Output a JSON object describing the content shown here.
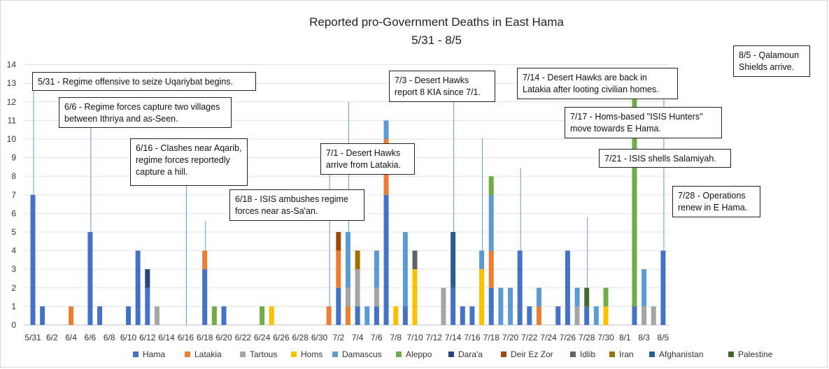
{
  "chart_data": {
    "type": "bar",
    "stacked": true,
    "title": "Reported pro-Government  Deaths in East Hama",
    "subtitle": "5/31 - 8/5",
    "ylim": [
      0,
      14
    ],
    "yticks": [
      0,
      1,
      2,
      3,
      4,
      5,
      6,
      7,
      8,
      9,
      10,
      11,
      12,
      13,
      14
    ],
    "grid": true,
    "legend": "bottom",
    "categories": [
      "5/31",
      "6/1",
      "6/2",
      "6/3",
      "6/4",
      "6/5",
      "6/6",
      "6/7",
      "6/8",
      "6/9",
      "6/10",
      "6/11",
      "6/12",
      "6/13",
      "6/14",
      "6/15",
      "6/16",
      "6/17",
      "6/18",
      "6/19",
      "6/20",
      "6/21",
      "6/22",
      "6/23",
      "6/24",
      "6/25",
      "6/26",
      "6/27",
      "6/28",
      "6/29",
      "6/30",
      "7/1",
      "7/2",
      "7/3",
      "7/4",
      "7/5",
      "7/6",
      "7/7",
      "7/8",
      "7/9",
      "7/10",
      "7/11",
      "7/12",
      "7/13",
      "7/14",
      "7/15",
      "7/16",
      "7/17",
      "7/18",
      "7/19",
      "7/20",
      "7/21",
      "7/22",
      "7/23",
      "7/24",
      "7/25",
      "7/26",
      "7/27",
      "7/28",
      "7/29",
      "7/30",
      "7/31",
      "8/1",
      "8/2",
      "8/3",
      "8/4",
      "8/5"
    ],
    "tick_labels": [
      "5/31",
      "6/2",
      "6/4",
      "6/6",
      "6/8",
      "6/10",
      "6/12",
      "6/14",
      "6/16",
      "6/18",
      "6/20",
      "6/22",
      "6/24",
      "6/26",
      "6/28",
      "6/30",
      "7/2",
      "7/4",
      "7/6",
      "7/8",
      "7/10",
      "7/12",
      "7/14",
      "7/16",
      "7/18",
      "7/20",
      "7/22",
      "7/24",
      "7/26",
      "7/28",
      "7/30",
      "8/1",
      "8/3",
      "8/5"
    ],
    "series": [
      {
        "name": "Hama",
        "color": "#4472c4",
        "values": [
          7,
          1,
          0,
          0,
          0,
          0,
          5,
          1,
          0,
          0,
          1,
          4,
          2,
          0,
          0,
          0,
          0,
          0,
          3,
          0,
          1,
          0,
          0,
          0,
          0,
          0,
          0,
          0,
          0,
          0,
          0,
          0,
          2,
          0,
          1,
          0,
          1,
          7,
          0,
          1,
          0,
          0,
          0,
          0,
          2,
          1,
          1,
          0,
          2,
          0,
          0,
          4,
          1,
          0,
          0,
          1,
          4,
          0,
          1,
          0,
          0,
          0,
          0,
          1,
          0,
          0,
          4
        ]
      },
      {
        "name": "Latakia",
        "color": "#ed7d31",
        "values": [
          0,
          0,
          0,
          0,
          1,
          0,
          0,
          0,
          0,
          0,
          0,
          0,
          0,
          0,
          0,
          0,
          0,
          0,
          1,
          0,
          0,
          0,
          0,
          0,
          0,
          0,
          0,
          0,
          0,
          0,
          0,
          1,
          2,
          1,
          0,
          0,
          0,
          3,
          0,
          0,
          0,
          0,
          0,
          0,
          0,
          0,
          0,
          0,
          2,
          0,
          0,
          0,
          0,
          1,
          0,
          0,
          0,
          0,
          0,
          0,
          0,
          0,
          0,
          0,
          0,
          0,
          0
        ]
      },
      {
        "name": "Tartous",
        "color": "#a5a5a5",
        "values": [
          0,
          0,
          0,
          0,
          0,
          0,
          0,
          0,
          0,
          0,
          0,
          0,
          0,
          1,
          0,
          0,
          0,
          0,
          0,
          0,
          0,
          0,
          0,
          0,
          0,
          0,
          0,
          0,
          0,
          0,
          0,
          0,
          0,
          1,
          2,
          0,
          1,
          0,
          0,
          0,
          0,
          0,
          0,
          2,
          0,
          0,
          0,
          0,
          0,
          0,
          0,
          0,
          0,
          0,
          0,
          0,
          0,
          1,
          0,
          0,
          0,
          0,
          0,
          0,
          1,
          1,
          0
        ]
      },
      {
        "name": "Homs",
        "color": "#ffc000",
        "values": [
          0,
          0,
          0,
          0,
          0,
          0,
          0,
          0,
          0,
          0,
          0,
          0,
          0,
          0,
          0,
          0,
          0,
          0,
          0,
          0,
          0,
          0,
          0,
          0,
          0,
          1,
          0,
          0,
          0,
          0,
          0,
          0,
          0,
          0,
          0,
          0,
          0,
          0,
          1,
          0,
          3,
          0,
          0,
          0,
          0,
          0,
          0,
          3,
          0,
          0,
          0,
          0,
          0,
          0,
          0,
          0,
          0,
          0,
          0,
          0,
          1,
          0,
          0,
          0,
          0,
          0,
          0
        ]
      },
      {
        "name": "Damascus",
        "color": "#5b9bd5",
        "values": [
          0,
          0,
          0,
          0,
          0,
          0,
          0,
          0,
          0,
          0,
          0,
          0,
          0,
          0,
          0,
          0,
          0,
          0,
          0,
          0,
          0,
          0,
          0,
          0,
          0,
          0,
          0,
          0,
          0,
          0,
          0,
          0,
          0,
          3,
          0,
          1,
          2,
          1,
          0,
          4,
          0,
          0,
          0,
          0,
          0,
          0,
          0,
          1,
          3,
          2,
          2,
          0,
          0,
          1,
          0,
          0,
          0,
          1,
          0,
          1,
          0,
          0,
          0,
          0,
          2,
          0,
          0
        ]
      },
      {
        "name": "Aleppo",
        "color": "#70ad47",
        "values": [
          0,
          0,
          0,
          0,
          0,
          0,
          0,
          0,
          0,
          0,
          0,
          0,
          0,
          0,
          0,
          0,
          0,
          0,
          0,
          1,
          0,
          0,
          0,
          0,
          1,
          0,
          0,
          0,
          0,
          0,
          0,
          0,
          0,
          0,
          0,
          0,
          0,
          0,
          0,
          0,
          0,
          0,
          0,
          0,
          0,
          0,
          0,
          0,
          1,
          0,
          0,
          0,
          0,
          0,
          0,
          0,
          0,
          0,
          0,
          0,
          1,
          0,
          0,
          12,
          0,
          0,
          0
        ]
      },
      {
        "name": "Dara'a",
        "color": "#264478",
        "values": [
          0,
          0,
          0,
          0,
          0,
          0,
          0,
          0,
          0,
          0,
          0,
          0,
          1,
          0,
          0,
          0,
          0,
          0,
          0,
          0,
          0,
          0,
          0,
          0,
          0,
          0,
          0,
          0,
          0,
          0,
          0,
          0,
          0,
          0,
          0,
          0,
          0,
          0,
          0,
          0,
          0,
          0,
          0,
          0,
          0,
          0,
          0,
          0,
          0,
          0,
          0,
          0,
          0,
          0,
          0,
          0,
          0,
          0,
          0,
          0,
          0,
          0,
          0,
          0,
          0,
          0,
          0
        ]
      },
      {
        "name": "Deir Ez Zor",
        "color": "#9e480e",
        "values": [
          0,
          0,
          0,
          0,
          0,
          0,
          0,
          0,
          0,
          0,
          0,
          0,
          0,
          0,
          0,
          0,
          0,
          0,
          0,
          0,
          0,
          0,
          0,
          0,
          0,
          0,
          0,
          0,
          0,
          0,
          0,
          0,
          1,
          0,
          0,
          0,
          0,
          0,
          0,
          0,
          0,
          0,
          0,
          0,
          0,
          0,
          0,
          0,
          0,
          0,
          0,
          0,
          0,
          0,
          0,
          0,
          0,
          0,
          0,
          0,
          0,
          0,
          0,
          0,
          0,
          0,
          0
        ]
      },
      {
        "name": "Idlib",
        "color": "#636363",
        "values": [
          0,
          0,
          0,
          0,
          0,
          0,
          0,
          0,
          0,
          0,
          0,
          0,
          0,
          0,
          0,
          0,
          0,
          0,
          0,
          0,
          0,
          0,
          0,
          0,
          0,
          0,
          0,
          0,
          0,
          0,
          0,
          0,
          0,
          0,
          0,
          0,
          0,
          0,
          0,
          0,
          1,
          0,
          0,
          0,
          0,
          0,
          0,
          0,
          0,
          0,
          0,
          0,
          0,
          0,
          0,
          0,
          0,
          0,
          0,
          0,
          0,
          0,
          0,
          0,
          0,
          0,
          0
        ]
      },
      {
        "name": "Iran",
        "color": "#997300",
        "values": [
          0,
          0,
          0,
          0,
          0,
          0,
          0,
          0,
          0,
          0,
          0,
          0,
          0,
          0,
          0,
          0,
          0,
          0,
          0,
          0,
          0,
          0,
          0,
          0,
          0,
          0,
          0,
          0,
          0,
          0,
          0,
          0,
          0,
          0,
          1,
          0,
          0,
          0,
          0,
          0,
          0,
          0,
          0,
          0,
          0,
          0,
          0,
          0,
          0,
          0,
          0,
          0,
          0,
          0,
          0,
          0,
          0,
          0,
          0,
          0,
          0,
          0,
          0,
          0,
          0,
          0,
          0
        ]
      },
      {
        "name": "Afghanistan",
        "color": "#255e91",
        "values": [
          0,
          0,
          0,
          0,
          0,
          0,
          0,
          0,
          0,
          0,
          0,
          0,
          0,
          0,
          0,
          0,
          0,
          0,
          0,
          0,
          0,
          0,
          0,
          0,
          0,
          0,
          0,
          0,
          0,
          0,
          0,
          0,
          0,
          0,
          0,
          0,
          0,
          0,
          0,
          0,
          0,
          0,
          0,
          0,
          3,
          0,
          0,
          0,
          0,
          0,
          0,
          0,
          0,
          0,
          0,
          0,
          0,
          0,
          0,
          0,
          0,
          0,
          0,
          0,
          0,
          0,
          0
        ]
      },
      {
        "name": "Palestine",
        "color": "#43682b",
        "values": [
          0,
          0,
          0,
          0,
          0,
          0,
          0,
          0,
          0,
          0,
          0,
          0,
          0,
          0,
          0,
          0,
          0,
          0,
          0,
          0,
          0,
          0,
          0,
          0,
          0,
          0,
          0,
          0,
          0,
          0,
          0,
          0,
          0,
          0,
          0,
          0,
          0,
          0,
          0,
          0,
          0,
          0,
          0,
          0,
          0,
          0,
          0,
          0,
          0,
          0,
          0,
          0,
          0,
          0,
          0,
          0,
          0,
          0,
          1,
          0,
          0,
          0,
          0,
          0,
          0,
          0,
          0
        ]
      }
    ],
    "annotations": [
      {
        "date": "5/31",
        "text": "5/31 - Regime offensive to seize Uqariybat begins."
      },
      {
        "date": "6/6",
        "text": "6/6 - Regime forces capture two villages between Ithriya and as-Seen."
      },
      {
        "date": "6/16",
        "text": "6/16 - Clashes near Aqarib, regime forces reportedly capture a hill."
      },
      {
        "date": "6/18",
        "text": "6/18 - ISIS ambushes regime forces near as-Sa'an."
      },
      {
        "date": "7/1",
        "text": "7/1 - Desert Hawks arrive from Latakia."
      },
      {
        "date": "7/3",
        "text": "7/3 - Desert Hawks report 8 KIA since 7/1."
      },
      {
        "date": "7/14",
        "text": "7/14 - Desert Hawks are back in Latakia after looting civilian homes."
      },
      {
        "date": "7/17",
        "text": "7/17 - Homs-based \"ISIS Hunters\" move towards E Hama."
      },
      {
        "date": "7/21",
        "text": "7/21 - ISIS shells Salamiyah."
      },
      {
        "date": "7/28",
        "text": "7/28 - Operations renew in E Hama."
      },
      {
        "date": "8/5",
        "text": "8/5 - Qalamoun Shields arrive."
      }
    ]
  }
}
